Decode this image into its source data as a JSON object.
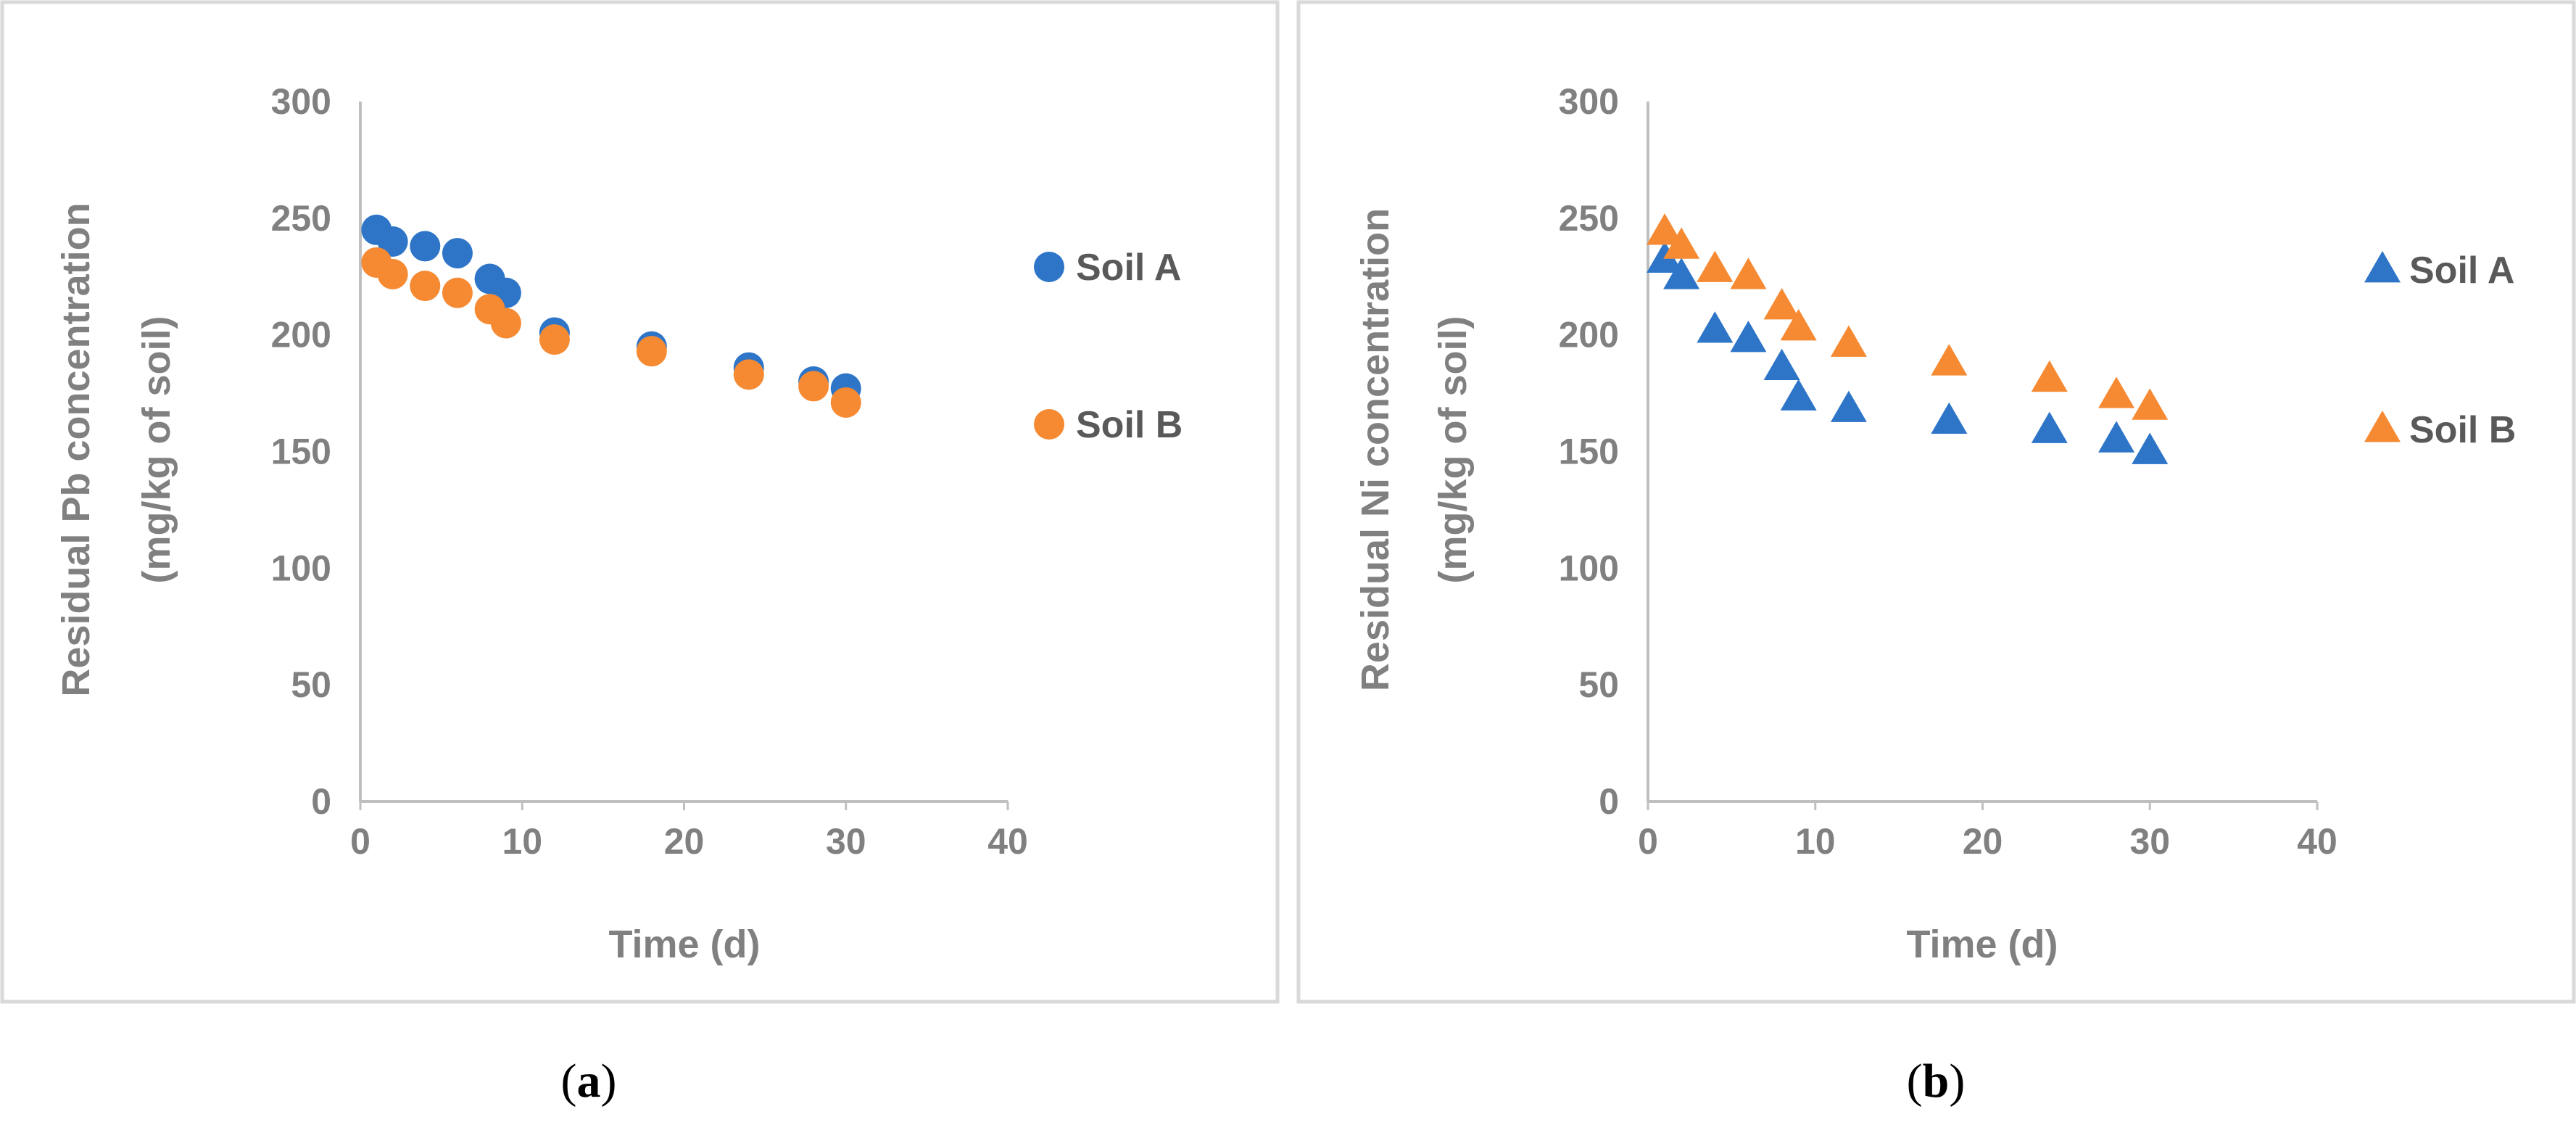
{
  "colors": {
    "soil_a": "#2E75C8",
    "soil_b": "#F58A33",
    "axis": "#BFBFBF",
    "frame": "#D9D9D9",
    "text": "#808080"
  },
  "chart_data": [
    {
      "type": "scatter",
      "panel_label": "a",
      "marker": "circle",
      "xlabel": "Time (d)",
      "ylabel_line1": "Residual Pb concentration",
      "ylabel_line2": "(mg/kg of soil)",
      "xlim": [
        0,
        40
      ],
      "ylim": [
        0,
        300
      ],
      "x_ticks": [
        "0",
        "10",
        "20",
        "30",
        "40"
      ],
      "y_ticks": [
        "0",
        "50",
        "100",
        "150",
        "200",
        "250",
        "300"
      ],
      "legend": [
        "Soil A",
        "Soil B"
      ],
      "series": [
        {
          "name": "Soil A",
          "x": [
            1,
            2,
            4,
            6,
            8,
            9,
            12,
            18,
            24,
            28,
            30
          ],
          "y": [
            245,
            240,
            238,
            235,
            224,
            218,
            201,
            195,
            186,
            180,
            177
          ]
        },
        {
          "name": "Soil B",
          "x": [
            1,
            2,
            4,
            6,
            8,
            9,
            12,
            18,
            24,
            28,
            30
          ],
          "y": [
            231,
            226,
            221,
            218,
            211,
            205,
            198,
            193,
            183,
            178,
            171
          ]
        }
      ]
    },
    {
      "type": "scatter",
      "panel_label": "b",
      "marker": "triangle",
      "xlabel": "Time (d)",
      "ylabel_line1": "Residual Ni concentration",
      "ylabel_line2": "(mg/kg of soil)",
      "xlim": [
        0,
        40
      ],
      "ylim": [
        0,
        300
      ],
      "x_ticks": [
        "0",
        "10",
        "20",
        "30",
        "40"
      ],
      "y_ticks": [
        "0",
        "50",
        "100",
        "150",
        "200",
        "250",
        "300"
      ],
      "legend": [
        "Soil A",
        "Soil B"
      ],
      "series": [
        {
          "name": "Soil A",
          "x": [
            1,
            2,
            4,
            6,
            8,
            9,
            12,
            18,
            24,
            28,
            30
          ],
          "y": [
            232,
            225,
            202,
            198,
            186,
            173,
            168,
            163,
            159,
            155,
            150
          ]
        },
        {
          "name": "Soil B",
          "x": [
            1,
            2,
            4,
            6,
            8,
            9,
            12,
            18,
            24,
            28,
            30
          ],
          "y": [
            244,
            238,
            228,
            225,
            212,
            203,
            196,
            188,
            181,
            174,
            169
          ]
        }
      ]
    }
  ]
}
